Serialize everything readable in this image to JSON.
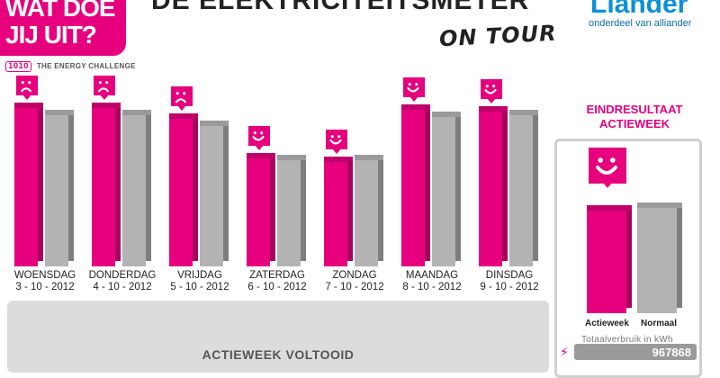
{
  "logo": {
    "line1": "WAT DOE",
    "line2": "JIJ UIT?"
  },
  "challenge_text": "THE ENERGY CHALLENGE",
  "challenge_mark": "1O1O",
  "title": "DE ELEKTRICITEITSMETER",
  "subtitle": "ON TOUR",
  "liander": {
    "name": "Liander",
    "tagline": "onderdeel van alliander"
  },
  "chart_data": {
    "type": "bar",
    "categories": [
      "WOENSDAG 3 - 10 - 2012",
      "DONDERDAG 4 - 10 - 2012",
      "VRIJDAG 5 - 10 - 2012",
      "ZATERDAG 6 - 10 - 2012",
      "ZONDAG 7 - 10 - 2012",
      "MAANDAG 8 - 10 - 2012",
      "DINSDAG 9 - 10 - 2012"
    ],
    "days": [
      {
        "day": "WOENSDAG",
        "date": "3 - 10 - 2012",
        "mood": "sad"
      },
      {
        "day": "DONDERDAG",
        "date": "4 - 10 - 2012",
        "mood": "sad"
      },
      {
        "day": "VRIJDAG",
        "date": "5 - 10 - 2012",
        "mood": "sad"
      },
      {
        "day": "ZATERDAG",
        "date": "6 - 10 - 2012",
        "mood": "happy"
      },
      {
        "day": "ZONDAG",
        "date": "7 - 10 - 2012",
        "mood": "happy"
      },
      {
        "day": "MAANDAG",
        "date": "8 - 10 - 2012",
        "mood": "happy"
      },
      {
        "day": "DINSDAG",
        "date": "9 - 10 - 2012",
        "mood": "happy"
      }
    ],
    "series": [
      {
        "color": "#e6007e",
        "values": [
          0.88,
          0.88,
          0.82,
          0.6,
          0.58,
          0.87,
          0.86
        ]
      },
      {
        "color": "#b3b3b3",
        "values": [
          0.84,
          0.84,
          0.78,
          0.59,
          0.59,
          0.83,
          0.84
        ]
      }
    ],
    "ylim": [
      0,
      1
    ]
  },
  "banner_text": "ACTIEWEEK VOLTOOID",
  "result": {
    "title_line1": "EINDRESULTAAT",
    "title_line2": "ACTIEWEEK",
    "mood": "happy",
    "actieweek_label": "Actieweek",
    "normaal_label": "Normaal",
    "values": {
      "actieweek": 0.88,
      "normaal": 0.9
    },
    "total_label": "Totaalverbruik in kWh",
    "counter": "967868"
  },
  "colors": {
    "accent": "#e6007e",
    "gray": "#b3b3b3",
    "liander_blue": "#0a8fd8"
  }
}
